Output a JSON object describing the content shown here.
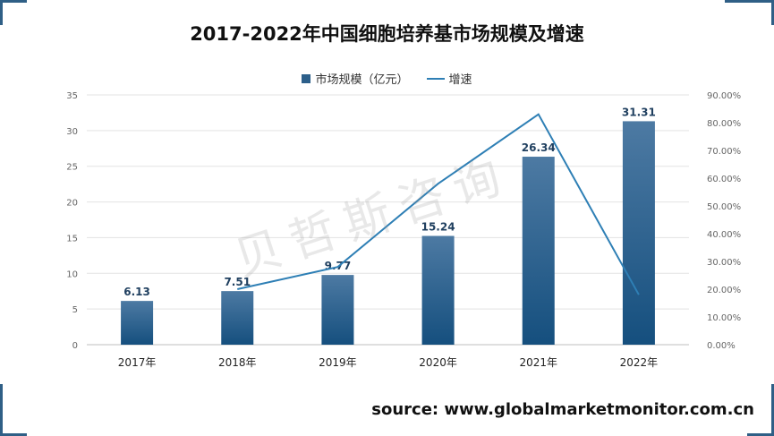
{
  "title": "2017-2022年中国细胞培养基市场规模及增速",
  "source": "source: www.globalmarketmonitor.com.cn",
  "watermark": "贝哲斯咨询",
  "colors": {
    "bar_top": "#4d7aa3",
    "bar_bottom": "#154f7e",
    "line": "#2e7fb5",
    "accent": "#2f5f86"
  },
  "legend": {
    "bar_label": "市场规模（亿元）",
    "line_label": "增速"
  },
  "chart_data": {
    "type": "bar",
    "categories": [
      "2017年",
      "2018年",
      "2019年",
      "2020年",
      "2021年",
      "2022年"
    ],
    "series": [
      {
        "name": "市场规模（亿元）",
        "type": "bar",
        "axis": "left",
        "values": [
          6.13,
          7.51,
          9.77,
          15.24,
          26.34,
          31.31
        ]
      },
      {
        "name": "增速",
        "type": "line",
        "axis": "right",
        "values": [
          null,
          0.2,
          0.28,
          0.58,
          0.83,
          0.18
        ]
      }
    ],
    "data_labels": [
      "6.13",
      "7.51",
      "9.77",
      "15.24",
      "26.34",
      "31.31"
    ],
    "ylim_left": [
      0,
      35
    ],
    "yticks_left": [
      "0",
      "5",
      "10",
      "15",
      "20",
      "25",
      "30",
      "35"
    ],
    "ylim_right": [
      0,
      0.9
    ],
    "yticks_right": [
      "0.00%",
      "10.00%",
      "20.00%",
      "30.00%",
      "40.00%",
      "50.00%",
      "60.00%",
      "70.00%",
      "80.00%",
      "90.00%"
    ],
    "grid": true,
    "legend_position": "top"
  }
}
